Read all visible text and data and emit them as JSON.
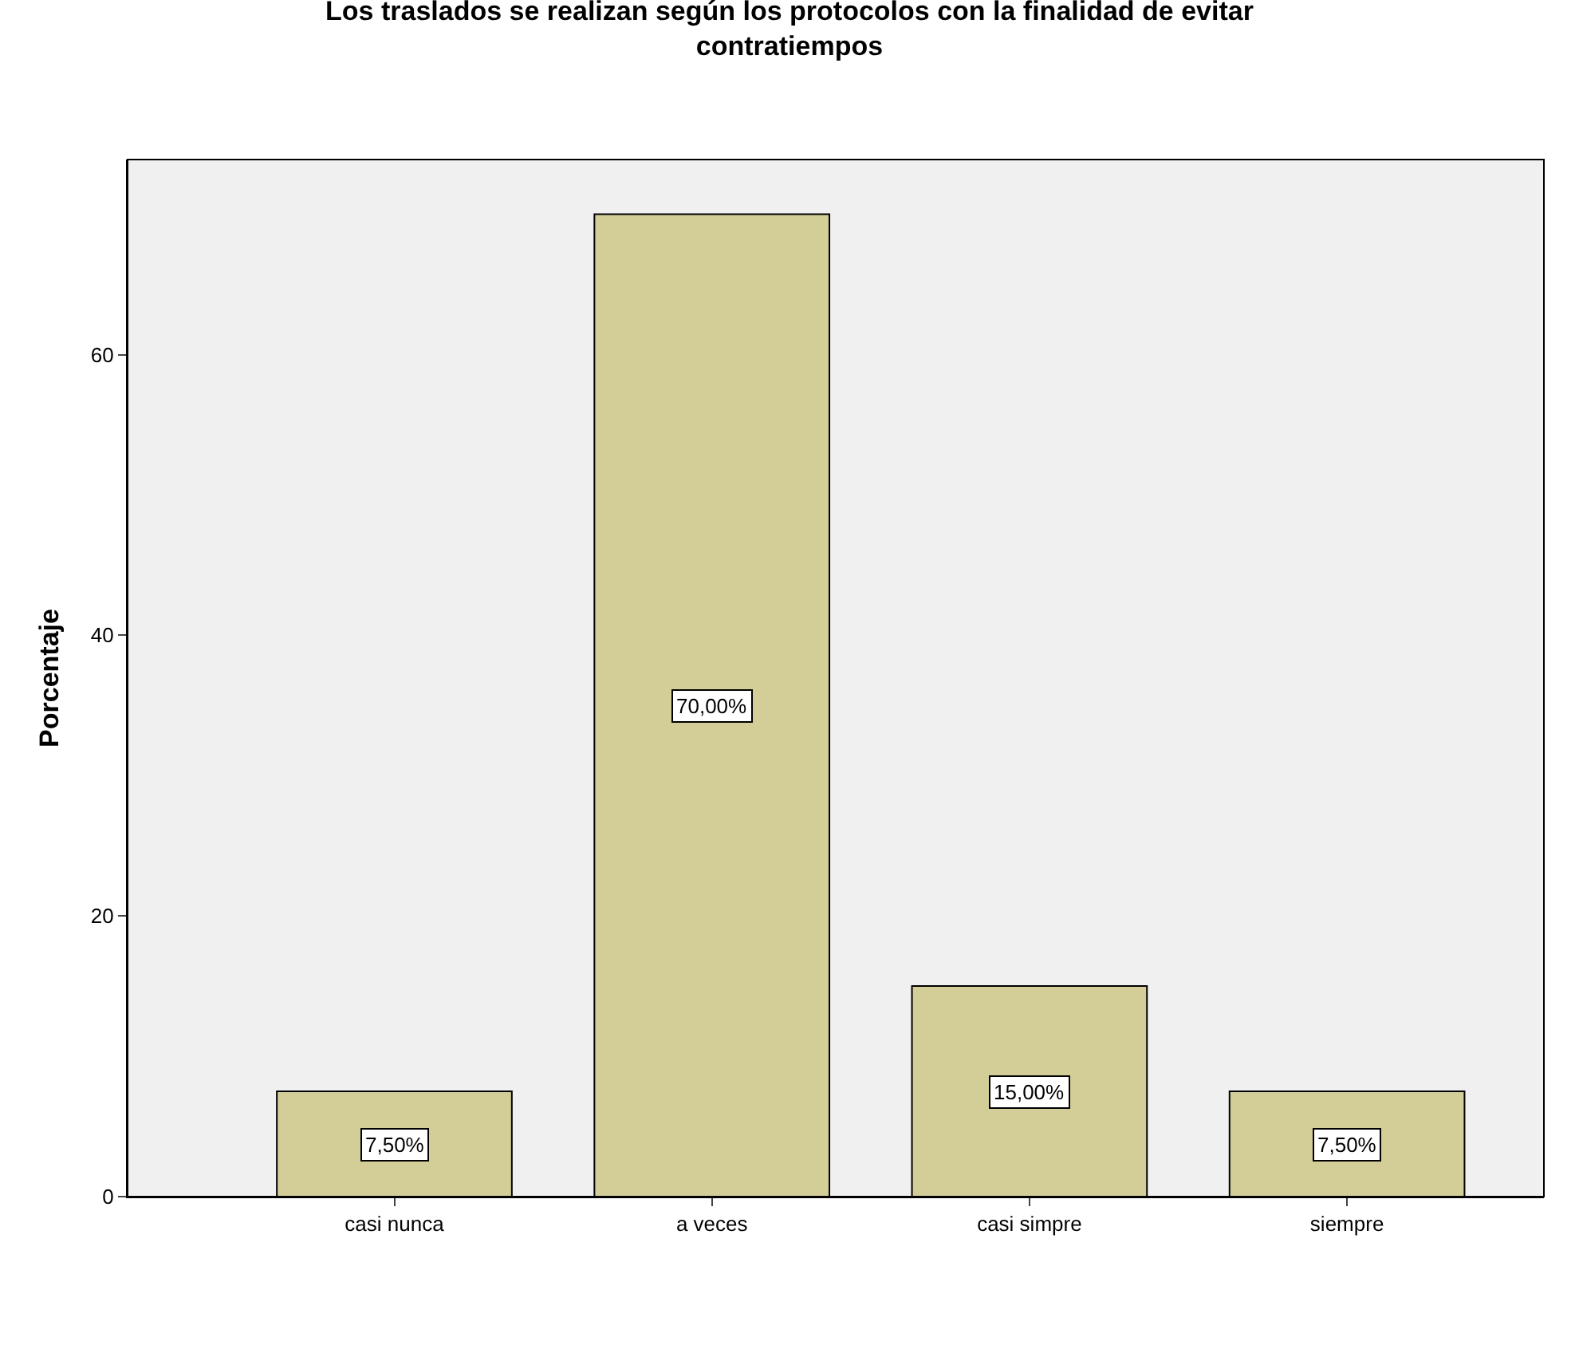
{
  "chart_data": {
    "type": "bar",
    "title": "Los traslados se realizan según los protocolos con la finalidad de evitar contratiempos",
    "ylabel": "Porcentaje",
    "categories": [
      "casi nunca",
      "a veces",
      "casi simpre",
      "siempre"
    ],
    "values": [
      7.5,
      70,
      15,
      7.5
    ],
    "value_labels": [
      "7,50%",
      "70,00%",
      "15,00%",
      "7,50%"
    ],
    "color": "#d3ce97",
    "ylim": [
      0,
      73.9
    ],
    "yticks": [
      0,
      20,
      40,
      60
    ],
    "grid": false,
    "legend": false
  }
}
